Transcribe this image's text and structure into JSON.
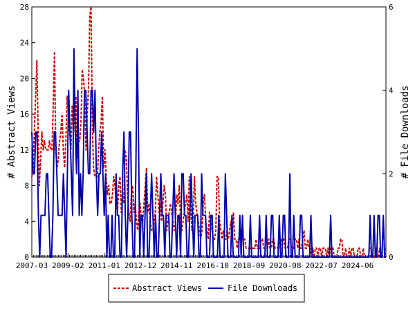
{
  "chart_data": {
    "type": "line",
    "ylabel_left": "# Abstract Views",
    "ylabel_right": "# File Downloads",
    "xlim": [
      "2007-03",
      "2025-12"
    ],
    "ylim_left": [
      0,
      28
    ],
    "ylim_right": [
      0,
      6
    ],
    "x_tick_labels": [
      "2007-03",
      "2009-02",
      "2011-01",
      "2012-12",
      "2014-11",
      "2016-10",
      "2018-09",
      "2020-08",
      "2022-07",
      "2024-06"
    ],
    "y_left_ticks": [
      "0",
      "4",
      "8",
      "12",
      "16",
      "20",
      "24",
      "28"
    ],
    "y_right_ticks": [
      "0",
      "2",
      "4",
      "6"
    ],
    "grid": false,
    "legend_position": "bottom",
    "series": [
      {
        "name": "Abstract Views",
        "axis": "left",
        "color": "#cc0000",
        "dash": "dashed",
        "values": [
          9,
          10,
          14,
          18,
          22,
          14,
          8,
          11,
          14,
          12,
          13,
          12,
          12,
          12,
          13,
          12,
          12,
          17,
          23,
          12,
          10,
          11,
          13,
          14,
          16,
          12,
          10,
          13,
          18,
          16,
          14,
          12,
          17,
          14,
          16,
          18,
          11,
          13,
          13,
          15,
          21,
          20,
          18,
          12,
          16,
          19,
          27,
          28,
          15,
          10,
          9,
          9,
          9,
          12,
          14,
          15,
          18,
          10,
          12,
          9,
          7,
          8,
          6,
          6,
          7,
          9,
          8,
          6,
          5,
          8,
          9,
          5,
          7,
          6,
          12,
          11,
          7,
          5,
          4,
          7,
          8,
          5,
          6,
          4,
          3,
          5,
          6,
          4,
          4,
          6,
          8,
          10,
          5,
          6,
          4,
          3,
          3,
          4,
          5,
          9,
          7,
          5,
          6,
          4,
          6,
          8,
          7,
          3,
          4,
          5,
          6,
          5,
          4,
          3,
          4,
          7,
          6,
          8,
          4,
          3,
          4,
          5,
          6,
          7,
          4,
          9,
          7,
          3,
          4,
          9,
          6,
          5,
          4,
          3,
          2,
          3,
          6,
          7,
          4,
          3,
          2,
          5,
          4,
          3,
          2,
          2,
          3,
          9,
          9,
          4,
          3,
          2,
          3,
          2,
          2,
          3,
          2,
          3,
          4,
          2,
          5,
          2,
          2,
          1,
          2,
          2,
          3,
          2,
          2,
          2,
          1,
          1,
          1,
          1,
          1,
          1,
          1,
          1,
          2,
          1,
          1,
          1,
          2,
          2,
          1,
          1,
          1,
          1,
          2,
          1,
          1,
          2,
          2,
          1,
          1,
          1,
          2,
          1,
          2,
          2,
          2,
          1,
          1,
          1,
          2,
          2,
          1,
          1,
          1,
          2,
          2,
          1,
          2,
          1,
          1,
          2,
          3,
          1,
          1,
          2,
          1,
          1,
          0,
          1,
          0,
          1,
          1,
          0,
          1,
          1,
          0,
          1,
          1,
          1,
          0,
          1,
          0,
          1,
          1,
          1,
          0,
          0,
          0,
          1,
          1,
          2,
          2,
          0,
          0,
          1,
          0,
          0,
          1,
          0,
          1,
          1,
          0,
          0,
          0,
          1,
          1,
          0,
          0,
          1,
          0,
          0,
          0,
          0,
          1,
          1,
          0,
          0,
          0,
          1,
          0,
          0,
          1,
          0,
          1,
          1,
          1,
          0
        ]
      },
      {
        "name": "File Downloads",
        "axis": "right",
        "color": "#0000aa",
        "dash": "solid",
        "values": [
          3,
          2,
          2,
          3,
          3,
          1,
          0,
          1,
          1,
          1,
          1,
          2,
          2,
          1,
          0,
          0,
          1,
          3,
          3,
          2,
          1,
          1,
          1,
          1,
          2,
          1,
          0,
          2,
          4,
          3,
          2,
          1,
          5,
          3,
          2,
          4,
          1,
          2,
          1,
          2,
          4,
          4,
          3,
          2,
          2,
          4,
          4,
          3,
          4,
          2,
          1,
          2,
          2,
          3,
          2,
          1,
          2,
          0,
          1,
          0,
          0,
          1,
          0,
          0,
          2,
          1,
          1,
          0,
          0,
          2,
          3,
          1,
          0,
          1,
          3,
          3,
          1,
          0,
          0,
          2,
          5,
          3,
          0,
          1,
          1,
          0,
          1,
          2,
          0,
          0,
          1,
          2,
          1,
          0,
          1,
          0,
          0,
          1,
          2,
          1,
          1,
          0,
          1,
          1,
          1,
          0,
          0,
          1,
          2,
          1,
          0,
          1,
          1,
          0,
          2,
          2,
          1,
          1,
          0,
          0,
          1,
          2,
          1,
          0,
          1,
          1,
          1,
          0,
          0,
          2,
          1,
          1,
          1,
          0,
          0,
          0,
          1,
          1,
          0,
          0,
          0,
          0,
          1,
          0,
          0,
          0,
          0,
          2,
          1,
          0,
          0,
          0,
          1,
          0,
          0,
          0,
          0,
          0,
          1,
          0,
          1,
          0,
          0,
          0,
          0,
          0,
          1,
          0,
          0,
          0,
          0,
          0,
          0,
          1,
          0,
          0,
          0,
          0,
          1,
          0,
          0,
          0,
          1,
          1,
          0,
          0,
          0,
          0,
          1,
          0,
          0,
          1,
          1,
          0,
          0,
          0,
          2,
          0,
          0,
          1,
          0,
          0,
          0,
          0,
          1,
          1,
          0,
          0,
          0,
          0,
          0,
          0,
          1,
          0,
          0,
          0,
          0,
          0,
          0,
          0,
          0,
          0,
          0,
          0,
          0,
          0,
          0,
          1,
          0,
          0,
          0,
          0,
          0,
          0,
          0,
          0,
          0,
          0,
          0,
          0,
          0,
          0,
          0,
          0,
          0,
          0,
          0,
          0,
          0,
          0,
          0,
          0,
          0,
          0,
          0,
          0,
          0,
          1,
          0,
          0,
          1,
          0,
          0,
          1,
          1,
          0,
          0,
          1,
          0,
          0
        ]
      }
    ]
  }
}
